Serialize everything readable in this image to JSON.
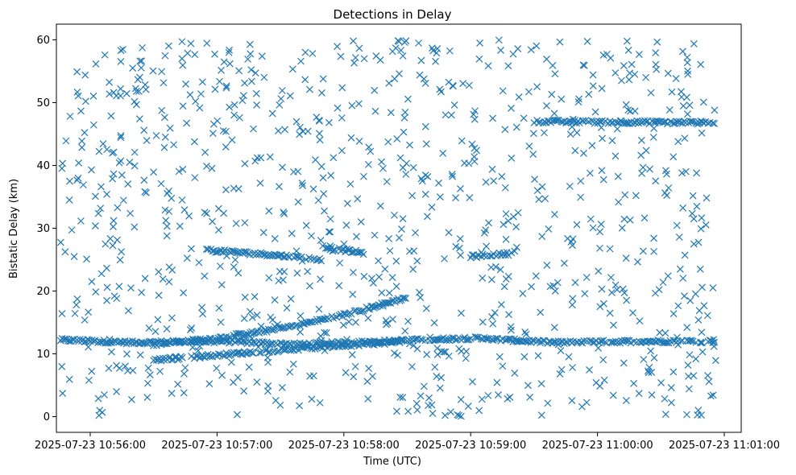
{
  "chart_data": {
    "type": "scatter",
    "title": "Detections in Delay",
    "xlabel": "Time (UTC)",
    "ylabel": "Bistatic Delay (km)",
    "x_format": "YYYY-MM-DD HH:MM:SS",
    "xlim": [
      "2025-07-23 10:55:44",
      "2025-07-23 11:01:08"
    ],
    "ylim": [
      -2.5,
      62.5
    ],
    "xticks": [
      "2025-07-23 10:56:00",
      "2025-07-23 10:57:00",
      "2025-07-23 10:58:00",
      "2025-07-23 10:59:00",
      "2025-07-23 11:00:00",
      "2025-07-23 11:01:00"
    ],
    "yticks": [
      0,
      10,
      20,
      30,
      40,
      50,
      60
    ],
    "marker": "x",
    "color": "#1f77b4",
    "grid": false,
    "legend": "none",
    "track_samples": [
      {
        "name": "",
        "x": [
          "2025-07-23 10:55:46",
          "2025-07-23 10:56:20",
          "2025-07-23 10:57:00",
          "2025-07-23 10:57:40",
          "2025-07-23 10:58:20",
          "2025-07-23 10:59:00",
          "2025-07-23 10:59:40",
          "2025-07-23 11:00:20",
          "2025-07-23 11:00:56"
        ],
        "y": [
          12.2,
          11.8,
          12.0,
          11.5,
          12.0,
          12.5,
          11.8,
          12.0,
          12.0
        ]
      },
      {
        "name": "",
        "x": [
          "2025-07-23 10:56:30",
          "2025-07-23 10:57:00",
          "2025-07-23 10:57:30",
          "2025-07-23 10:58:00",
          "2025-07-23 10:58:30"
        ],
        "y": [
          11.5,
          12.5,
          14.0,
          16.2,
          19.0
        ]
      },
      {
        "name": "",
        "x": [
          "2025-07-23 10:56:30",
          "2025-07-23 10:57:00",
          "2025-07-23 10:57:30",
          "2025-07-23 10:58:00",
          "2025-07-23 10:58:30"
        ],
        "y": [
          9.0,
          9.8,
          10.6,
          11.3,
          12.0
        ]
      },
      {
        "name": "",
        "x": [
          "2025-07-23 10:56:55",
          "2025-07-23 10:57:25",
          "2025-07-23 10:57:50"
        ],
        "y": [
          26.5,
          25.8,
          25.0
        ]
      },
      {
        "name": "",
        "x": [
          "2025-07-23 10:57:50",
          "2025-07-23 10:58:10"
        ],
        "y": [
          27.0,
          26.0
        ]
      },
      {
        "name": "",
        "x": [
          "2025-07-23 10:59:00",
          "2025-07-23 10:59:20"
        ],
        "y": [
          25.5,
          26.0
        ]
      },
      {
        "name": "",
        "x": [
          "2025-07-23 10:59:30",
          "2025-07-23 11:00:56"
        ],
        "y": [
          47.0,
          46.8
        ]
      }
    ]
  }
}
